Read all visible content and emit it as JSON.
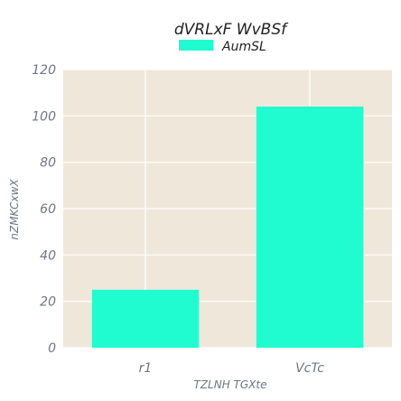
{
  "chart_data": {
    "type": "bar",
    "title": "dVRLxF WvBSf",
    "xlabel": "TZLNH TGXte",
    "ylabel": "nZMKCxwX",
    "categories": [
      "r1",
      "VcTc"
    ],
    "series": [
      {
        "name": "AumSL",
        "values": [
          25,
          104
        ]
      }
    ],
    "ylim": [
      0,
      120
    ],
    "yticks": [
      0,
      20,
      40,
      60,
      80,
      100,
      120
    ],
    "grid": true,
    "legend_position": "top-center"
  },
  "colors": {
    "bar": "#20fcd0",
    "plot_background": "#efe8da",
    "grid": "#ffffff",
    "text": "#6b7785",
    "title": "#222222"
  }
}
